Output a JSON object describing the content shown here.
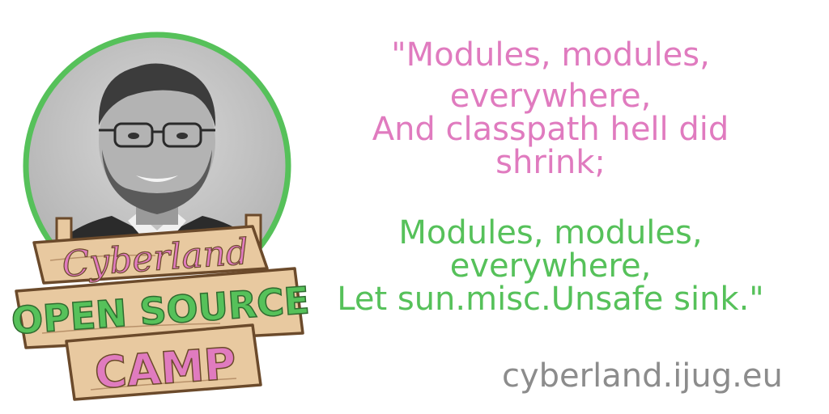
{
  "quote": {
    "pink_lines": [
      "\"Modules, modules,",
      "everywhere,",
      "And classpath hell did",
      "shrink;"
    ],
    "green_lines": [
      "Modules, modules,",
      "everywhere,",
      "Let sun.misc.Unsafe sink.\""
    ]
  },
  "logo": {
    "line1": "Cyberland",
    "line2": "OPEN SOURCE",
    "line3": "CAMP"
  },
  "footer": {
    "url": "cyberland.ijug.eu"
  },
  "colors": {
    "pink": "#e07bbf",
    "green": "#56c15a",
    "gray": "#8c8c8c",
    "wood": "#e8c9a0",
    "wood_outline": "#6b4a2b"
  },
  "icons": {
    "portrait": "speaker-photo",
    "sign": "wooden-sign-logo"
  }
}
